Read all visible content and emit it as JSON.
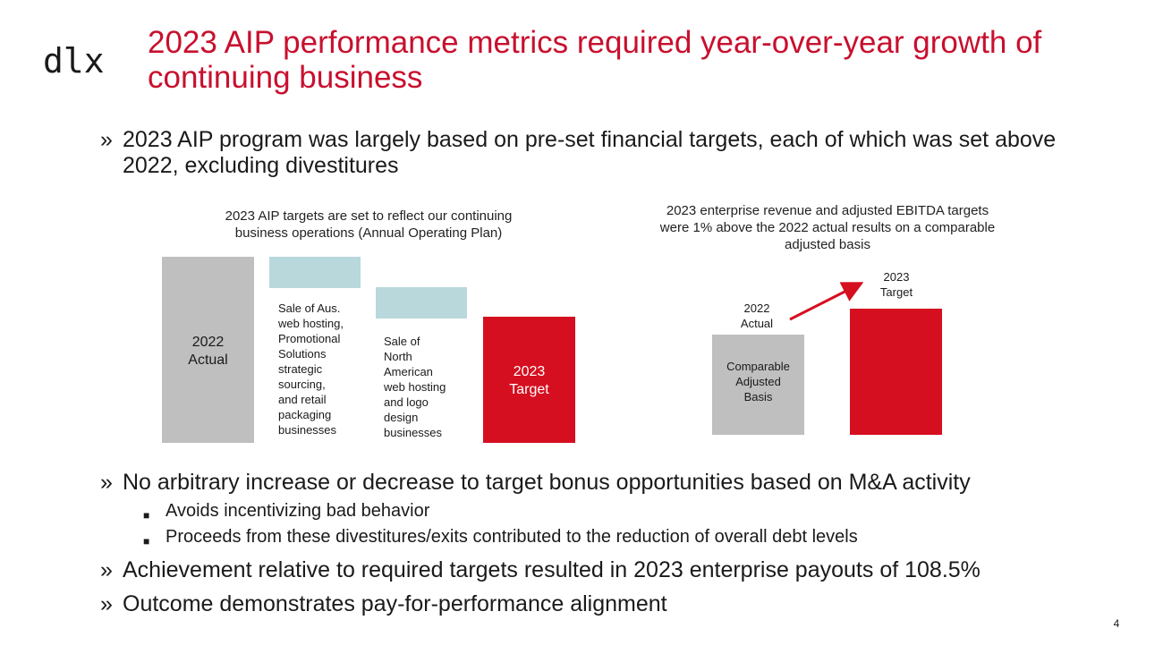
{
  "logo": {
    "text": "dlx"
  },
  "title": "2023 AIP performance metrics required year-over-year growth of continuing business",
  "bullets_top": [
    {
      "marker": "»",
      "text": "2023 AIP program was largely based on pre-set financial targets, each of which was set above 2022, excluding divestitures"
    }
  ],
  "left_chart": {
    "caption": "2023 AIP targets are set to reflect our continuing business operations (Annual Operating Plan)",
    "bar1_label": "2022\nActual",
    "step1_label": "Sale of Aus.\nweb hosting,\nPromotional\nSolutions\nstrategic\nsourcing,\nand retail\npackaging\nbusinesses",
    "step2_label": "Sale of\nNorth\nAmerican\nweb hosting\nand logo\ndesign\nbusinesses",
    "bar2_label": "2023\nTarget"
  },
  "right_chart": {
    "caption": "2023 enterprise revenue and adjusted EBITDA targets were 1% above the 2022 actual results on a comparable adjusted basis",
    "actual_label": "2022\nActual",
    "target_label": "2023\nTarget",
    "actual_bar_label": "Comparable\nAdjusted\nBasis"
  },
  "bullets_bottom": {
    "b1": "No arbitrary increase or decrease to target bonus opportunities based on M&A activity",
    "sub1": "Avoids incentivizing bad behavior",
    "sub2": "Proceeds from these divestitures/exits contributed to the reduction of overall debt levels",
    "b2": "Achievement relative to required targets resulted in 2023 enterprise payouts of 108.5%",
    "b3": "Outcome demonstrates pay-for-performance alignment",
    "marker": "»",
    "sub_marker": "■"
  },
  "page_number": "4",
  "colors": {
    "accent": "#c8102e",
    "bar_red": "#d50f1f",
    "bar_gray": "#bfbfbf",
    "bar_teal": "#b8d8dc"
  }
}
